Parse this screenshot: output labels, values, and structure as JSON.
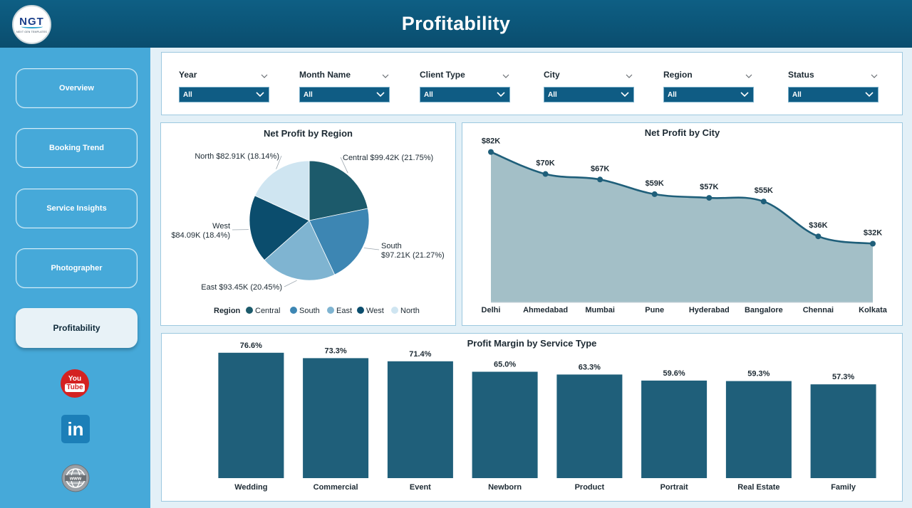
{
  "header": {
    "title": "Profitability",
    "logo_text": "NGT",
    "logo_subtext": "NEXT GEN TEMPLATES"
  },
  "sidebar": {
    "items": [
      {
        "label": "Overview",
        "active": false
      },
      {
        "label": "Booking Trend",
        "active": false
      },
      {
        "label": "Service Insights",
        "active": false
      },
      {
        "label": "Photographer",
        "active": false
      },
      {
        "label": "Profitability",
        "active": true
      }
    ],
    "social": {
      "youtube_top": "You",
      "youtube_bottom": "Tube",
      "linkedin": "in"
    }
  },
  "filters": [
    {
      "label": "Year",
      "value": "All"
    },
    {
      "label": "Month Name",
      "value": "All"
    },
    {
      "label": "Client Type",
      "value": "All"
    },
    {
      "label": "City",
      "value": "All"
    },
    {
      "label": "Region",
      "value": "All"
    },
    {
      "label": "Status",
      "value": "All"
    }
  ],
  "colors": {
    "header": "#0a4d6e",
    "sidebar": "#46a9d9",
    "bar": "#1f5f7a",
    "area": "#a3bfc7",
    "line": "#1f5f7a"
  },
  "charts": {
    "region": {
      "title": "Net Profit by Region",
      "legend_title": "Region"
    },
    "city": {
      "title": "Net Profit by City"
    },
    "margin": {
      "title": "Profit Margin by Service Type"
    }
  },
  "chart_data": [
    {
      "type": "pie",
      "title": "Net Profit by Region",
      "legend_title": "Region",
      "legend_placement": "bottom",
      "slices": [
        {
          "name": "Central",
          "value": 99.42,
          "label": "Central $99.42K (21.75%)",
          "color": "#1c5a6b"
        },
        {
          "name": "South",
          "value": 97.21,
          "label": "South\n$97.21K (21.27%)",
          "color": "#3d86b3"
        },
        {
          "name": "East",
          "value": 93.45,
          "label": "East $93.45K (20.45%)",
          "color": "#7fb4d1"
        },
        {
          "name": "West",
          "value": 84.09,
          "label": "West\n$84.09K (18.4%)",
          "color": "#0b4d6d"
        },
        {
          "name": "North",
          "value": 82.91,
          "label": "North $82.91K (18.14%)",
          "color": "#cfe5f1"
        }
      ]
    },
    {
      "type": "area",
      "title": "Net Profit by City",
      "categories": [
        "Delhi",
        "Ahmedabad",
        "Mumbai",
        "Pune",
        "Hyderabad",
        "Bangalore",
        "Chennai",
        "Kolkata"
      ],
      "values": [
        82,
        70,
        67,
        59,
        57,
        55,
        36,
        32
      ],
      "data_labels": [
        "$82K",
        "$70K",
        "$67K",
        "$59K",
        "$57K",
        "$55K",
        "$36K",
        "$32K"
      ],
      "ylim": [
        0,
        90
      ]
    },
    {
      "type": "bar",
      "title": "Profit Margin by Service Type",
      "categories": [
        "Wedding",
        "Commercial",
        "Event",
        "Newborn",
        "Product",
        "Portrait",
        "Real Estate",
        "Family"
      ],
      "values": [
        76.6,
        73.3,
        71.4,
        65.0,
        63.3,
        59.6,
        59.3,
        57.3
      ],
      "data_labels": [
        "76.6%",
        "73.3%",
        "71.4%",
        "65.0%",
        "63.3%",
        "59.6%",
        "59.3%",
        "57.3%"
      ],
      "ylim": [
        0,
        100
      ]
    }
  ]
}
